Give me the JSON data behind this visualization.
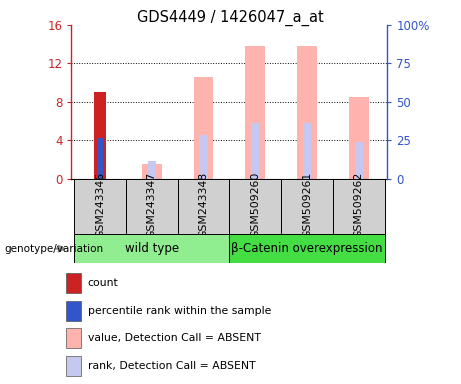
{
  "title": "GDS4449 / 1426047_a_at",
  "samples": [
    "GSM243346",
    "GSM243347",
    "GSM243348",
    "GSM509260",
    "GSM509261",
    "GSM509262"
  ],
  "count_values": [
    9.0,
    0,
    0,
    0,
    0,
    0
  ],
  "percentile_values": [
    4.2,
    0,
    0,
    0,
    0,
    0
  ],
  "absent_value_values": [
    0,
    1.5,
    10.6,
    13.8,
    13.8,
    8.5
  ],
  "absent_rank_values": [
    0,
    1.8,
    4.5,
    5.8,
    5.8,
    3.8
  ],
  "ylim_left": [
    0,
    16
  ],
  "ylim_right": [
    0,
    100
  ],
  "yticks_left": [
    0,
    4,
    8,
    12,
    16
  ],
  "ytick_labels_left": [
    "0",
    "4",
    "8",
    "12",
    "16"
  ],
  "yticks_right": [
    0,
    25,
    50,
    75,
    100
  ],
  "ytick_labels_right": [
    "0",
    "25",
    "50",
    "75",
    "100%"
  ],
  "color_count": "#cc2222",
  "color_percentile": "#3355cc",
  "color_absent_value": "#ffb3ae",
  "color_absent_rank": "#c5c8f0",
  "background_plot": "#ffffff",
  "background_sample": "#d0d0d0",
  "left_axis_color": "#cc2222",
  "right_axis_color": "#3355cc",
  "group_spans": [
    {
      "label": "wild type",
      "start": 0,
      "end": 2,
      "color": "#90ee90"
    },
    {
      "label": "β-Catenin overexpression",
      "start": 3,
      "end": 5,
      "color": "#44dd44"
    }
  ],
  "legend_items": [
    {
      "color": "#cc2222",
      "label": "count"
    },
    {
      "color": "#3355cc",
      "label": "percentile rank within the sample"
    },
    {
      "color": "#ffb3ae",
      "label": "value, Detection Call = ABSENT"
    },
    {
      "color": "#c5c8f0",
      "label": "rank, Detection Call = ABSENT"
    }
  ]
}
